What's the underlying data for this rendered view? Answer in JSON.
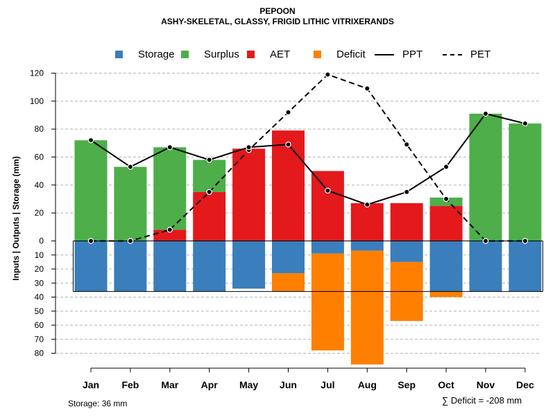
{
  "header": {
    "title": "PEPOON",
    "subtitle": "ASHY-SKELETAL, GLASSY, FRIGID LITHIC VITRIXERANDS"
  },
  "legend": {
    "storage": "Storage",
    "surplus": "Surplus",
    "aet": "AET",
    "deficit": "Deficit",
    "ppt": "PPT",
    "pet": "PET"
  },
  "colors": {
    "storage": "#3a7ebc",
    "surplus": "#4dae4a",
    "aet": "#e3191c",
    "deficit": "#ff7f00",
    "grid": "#b3b3b3"
  },
  "footer": {
    "storage_note": "Storage: 36 mm",
    "deficit_note": "∑ Deficit = -208 mm"
  },
  "chart_data": {
    "type": "bar",
    "ylabel": "Inputs | Outputs | Storage     (mm)",
    "categories": [
      "Jan",
      "Feb",
      "Mar",
      "Apr",
      "May",
      "Jun",
      "Jul",
      "Aug",
      "Sep",
      "Oct",
      "Nov",
      "Dec"
    ],
    "upper_ticks": [
      0,
      20,
      40,
      60,
      80,
      100,
      120
    ],
    "lower_ticks": [
      10,
      20,
      30,
      40,
      50,
      60,
      70,
      80
    ],
    "ylim_upper": [
      0,
      120
    ],
    "ylim_lower": [
      0,
      85
    ],
    "storage_capacity": 36,
    "series": [
      {
        "name": "AET",
        "values": [
          0,
          0,
          8,
          35,
          66,
          79,
          50,
          27,
          27,
          25,
          0,
          0
        ]
      },
      {
        "name": "Surplus",
        "values": [
          72,
          53,
          59,
          23,
          0,
          0,
          0,
          0,
          0,
          6,
          91,
          84
        ]
      },
      {
        "name": "Storage",
        "values": [
          36,
          36,
          36,
          36,
          34,
          23,
          9,
          7,
          15,
          36,
          36,
          36
        ]
      },
      {
        "name": "Deficit",
        "values": [
          0,
          0,
          0,
          0,
          0,
          13,
          69,
          81,
          42,
          4,
          0,
          0
        ]
      },
      {
        "name": "PPT",
        "values": [
          72,
          53,
          67,
          58,
          67,
          69,
          36,
          26,
          35,
          53,
          91,
          84
        ]
      },
      {
        "name": "PET",
        "values": [
          0,
          0,
          8,
          35,
          65,
          92,
          119,
          109,
          69,
          30,
          0,
          0
        ]
      }
    ]
  }
}
